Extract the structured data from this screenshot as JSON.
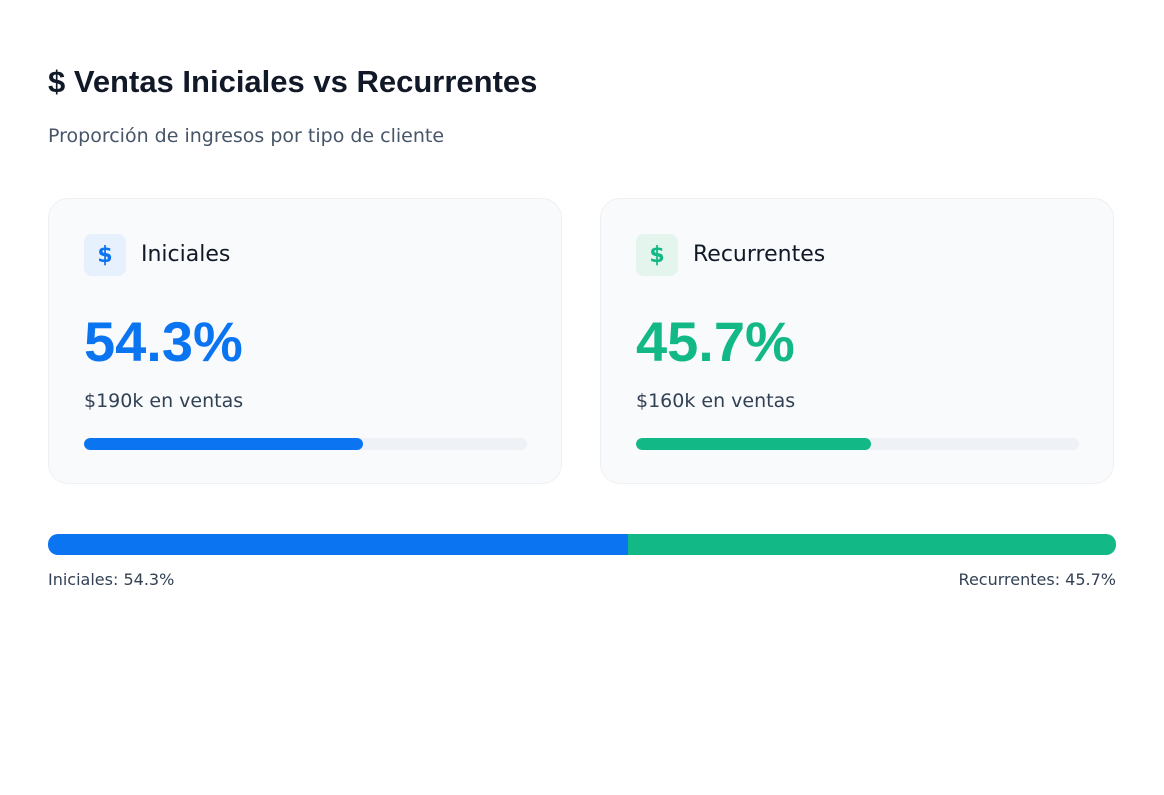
{
  "header": {
    "title": "$ Ventas Iniciales vs Recurrentes",
    "subtitle": "Proporción de ingresos por tipo de cliente"
  },
  "cards": [
    {
      "icon": "$",
      "name": "Iniciales",
      "share": 54.3,
      "share_label": "54.3%",
      "sales": "$190k en ventas",
      "progress": 63,
      "color": "#0b74f1",
      "tint": "#e7f0fd"
    },
    {
      "icon": "$",
      "name": "Recurrentes",
      "share": 45.7,
      "share_label": "45.7%",
      "sales": "$160k en ventas",
      "progress": 53,
      "color": "#12b886",
      "tint": "#e3f5ec"
    }
  ],
  "progress_range": [
    0,
    100
  ],
  "split_bar": {
    "labels": [
      "Iniciales: 54.3%",
      "Recurrentes: 45.7%"
    ]
  }
}
